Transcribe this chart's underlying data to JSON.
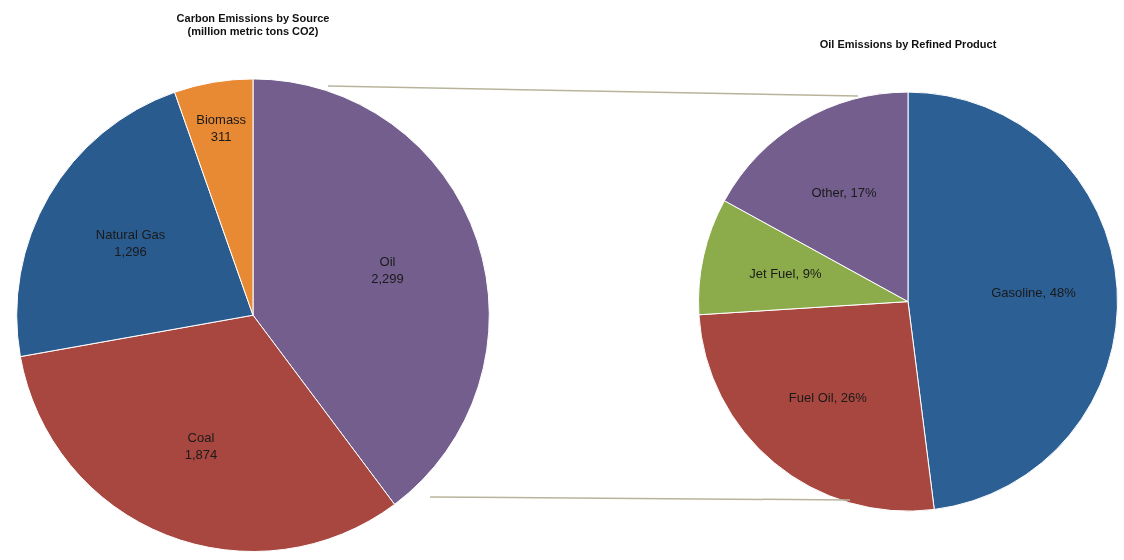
{
  "chart_data": [
    {
      "type": "pie",
      "title": [
        "Carbon Emissions by Source",
        "(million metric tons CO2)"
      ],
      "categories": [
        "Oil",
        "Coal",
        "Natural Gas",
        "Biomass"
      ],
      "values": [
        2299,
        1874,
        1296,
        311
      ],
      "colors": [
        "#735e8e",
        "#a8473f",
        "#2a5b8e",
        "#e88a34"
      ],
      "value_labels": [
        "2,299",
        "1,874",
        "1,296",
        "311"
      ],
      "legend": false
    },
    {
      "type": "pie",
      "title": "Oil Emissions by Refined Product",
      "categories": [
        "Gasoline",
        "Fuel Oil",
        "Jet Fuel",
        "Other"
      ],
      "values": [
        48,
        26,
        9,
        17
      ],
      "colors": [
        "#2c5f94",
        "#a8473f",
        "#8cab4a",
        "#735e8e"
      ],
      "value_labels": [
        "48%",
        "26%",
        "9%",
        "17%"
      ],
      "legend": false
    }
  ]
}
